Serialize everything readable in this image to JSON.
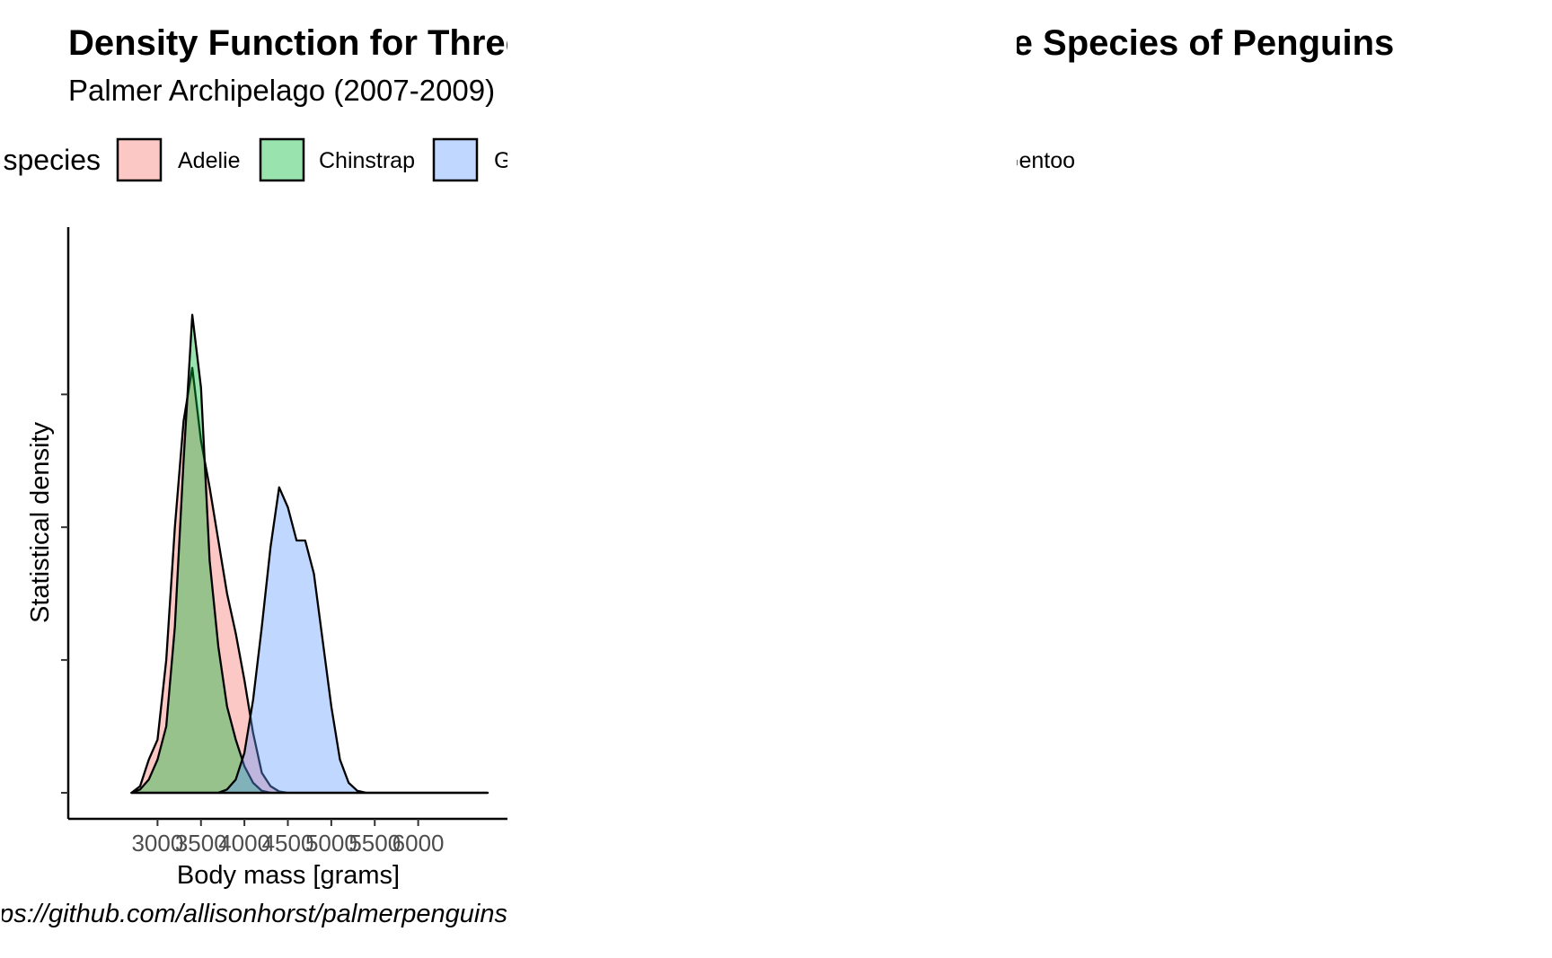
{
  "panel_count": 3,
  "chart_data": {
    "type": "area",
    "title": "Density Function for Three Species of Penguins",
    "subtitle": "Palmer Archipelago (2007-2009)",
    "xlabel": "Body mass [grams]",
    "ylabel": "Statistical density",
    "caption": "Data: https://github.com/allisonhorst/palmerpenguins",
    "legend_title": "species",
    "legend_position": "top",
    "grid": false,
    "xlim": [
      2200,
      6800
    ],
    "ylim": [
      0,
      0.00081
    ],
    "x_ticks": [
      3000,
      3500,
      4000,
      4500,
      5000,
      5500,
      6000
    ],
    "x_tick_labels": [
      "3000",
      "3500",
      "4000",
      "4500",
      "5000",
      "5500",
      "6000"
    ],
    "y_ticks": [
      0,
      0.0002,
      0.0004,
      0.0006
    ],
    "y_tick_labels": [
      "",
      "",
      "",
      ""
    ],
    "x": [
      2700,
      2800,
      2900,
      3000,
      3100,
      3200,
      3300,
      3400,
      3500,
      3600,
      3700,
      3800,
      3900,
      4000,
      4100,
      4200,
      4300,
      4400,
      4500,
      4600,
      4700,
      4800,
      4900,
      5000,
      5100,
      5200,
      5300,
      5400,
      5500,
      5600,
      5700,
      5800,
      5900,
      6000,
      6100,
      6200,
      6300,
      6400,
      6500,
      6600,
      6700,
      6800
    ],
    "series": [
      {
        "name": "Adelie",
        "color": "#F8766D",
        "values": [
          0,
          1e-05,
          5e-05,
          8e-05,
          0.0002,
          0.0004,
          0.00056,
          0.00064,
          0.00053,
          0.00046,
          0.00038,
          0.0003,
          0.00024,
          0.00017,
          9e-05,
          3e-05,
          1e-05,
          2e-06,
          0,
          0,
          0,
          0,
          0,
          0,
          0,
          0,
          0,
          0,
          0,
          0,
          0,
          0,
          0,
          0,
          0,
          0,
          0,
          0,
          0,
          0,
          0,
          0
        ]
      },
      {
        "name": "Chinstrap",
        "color": "#00BA38",
        "values": [
          0,
          5e-06,
          2e-05,
          5e-05,
          0.0001,
          0.00025,
          0.0005,
          0.00072,
          0.00061,
          0.00035,
          0.00022,
          0.00013,
          8e-05,
          4e-05,
          1.5e-05,
          3e-06,
          0,
          0,
          0,
          0,
          0,
          0,
          0,
          0,
          0,
          0,
          0,
          0,
          0,
          0,
          0,
          0,
          0,
          0,
          0,
          0,
          0,
          0,
          0,
          0,
          0,
          0
        ]
      },
      {
        "name": "Gentoo",
        "color": "#619CFF",
        "values": [
          0,
          0,
          0,
          0,
          0,
          0,
          0,
          0,
          0,
          0,
          0,
          5e-06,
          2e-05,
          6e-05,
          0.00014,
          0.00025,
          0.00037,
          0.00046,
          0.00043,
          0.00038,
          0.00038,
          0.00033,
          0.00023,
          0.00013,
          5e-05,
          1.5e-05,
          3e-06,
          0,
          0,
          0,
          0,
          0,
          0,
          0,
          0,
          0,
          0,
          0,
          0,
          0,
          0,
          0
        ]
      }
    ]
  }
}
